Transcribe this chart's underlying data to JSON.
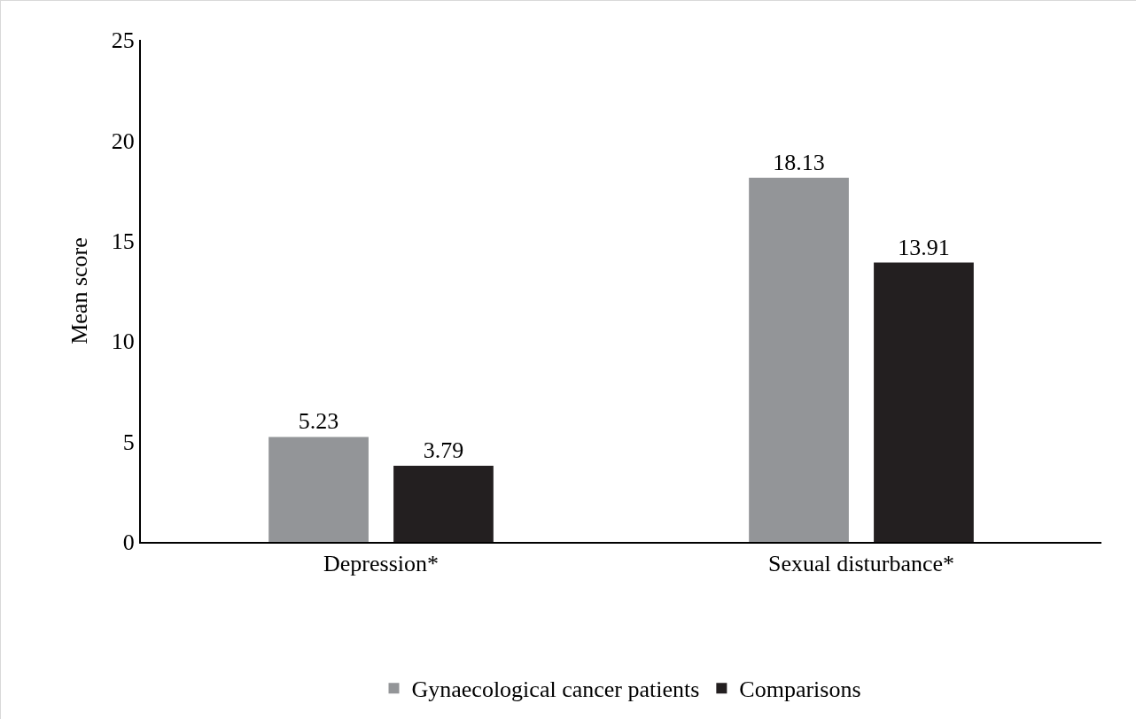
{
  "chart_data": {
    "type": "bar",
    "ylabel": "Mean score",
    "categories": [
      "Depression*",
      "Sexual disturbance*"
    ],
    "series": [
      {
        "name": "Gynaecological cancer patients",
        "color": "#939598",
        "values": [
          5.23,
          18.13
        ]
      },
      {
        "name": "Comparisons",
        "color": "#231f20",
        "values": [
          3.79,
          13.91
        ]
      }
    ],
    "ylim": [
      0,
      25
    ],
    "yticks": [
      0,
      5,
      10,
      15,
      20,
      25
    ],
    "grid": false,
    "legend": "bottom",
    "data_labels": true
  }
}
